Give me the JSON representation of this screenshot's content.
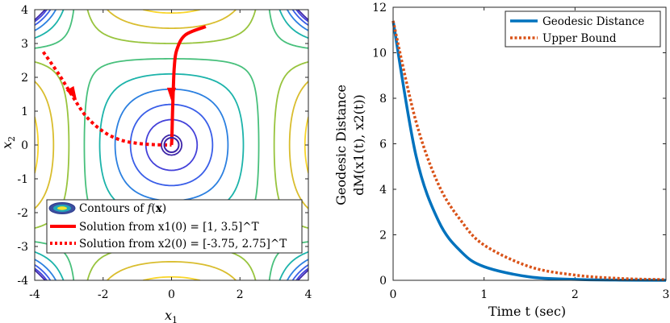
{
  "chart_data": [
    {
      "type": "contour",
      "title": "",
      "xlabel": "x1",
      "ylabel": "x2",
      "xlim": [
        -4,
        4
      ],
      "ylim": [
        -4,
        4
      ],
      "xticks": [
        "-4",
        "-2",
        "0",
        "2",
        "4"
      ],
      "yticks": [
        "4",
        "3",
        "2",
        "1",
        "0",
        "-1",
        "-2",
        "-3",
        "-4"
      ],
      "legend": {
        "position": "bottom",
        "entries": [
          "Contours of f(x)",
          "Solution from x1(0) = [1, 3.5]^T",
          "Solution from x2(0) = [-3.75, 2.75]^T"
        ]
      },
      "contour_levels": [
        0.3,
        0.75,
        1.2,
        1.65,
        2.1,
        2.55,
        3.0,
        3.45,
        3.9
      ],
      "series": [
        {
          "name": "Solution from x1(0)",
          "style": "solid",
          "color": "#ff0000",
          "x": [
            1.0,
            0.4,
            0.15,
            0.08,
            0.05,
            0.03,
            0.02,
            0.01,
            0.0
          ],
          "y": [
            3.5,
            3.25,
            2.8,
            2.3,
            1.6,
            1.0,
            0.6,
            0.2,
            0.0
          ]
        },
        {
          "name": "Solution from x2(0)",
          "style": "dotted",
          "color": "#ff0000",
          "x": [
            -3.75,
            -3.3,
            -2.9,
            -2.5,
            -2.0,
            -1.5,
            -1.0,
            -0.5,
            0.0
          ],
          "y": [
            2.75,
            2.1,
            1.45,
            0.85,
            0.4,
            0.15,
            0.05,
            0.01,
            0.0
          ]
        }
      ]
    },
    {
      "type": "line",
      "title": "",
      "xlabel": "Time t (sec)",
      "ylabel": "Geodesic Distance",
      "ylabel2": "dM(x1(t), x2(t))",
      "xlim": [
        0,
        3
      ],
      "ylim": [
        0,
        12
      ],
      "xticks": [
        "0",
        "1",
        "2",
        "3"
      ],
      "yticks": [
        "12",
        "10",
        "8",
        "6",
        "4",
        "2",
        "0"
      ],
      "legend": {
        "position": "top-right",
        "entries": [
          "Geodesic Distance",
          "Upper Bound"
        ]
      },
      "series": [
        {
          "name": "Geodesic Distance",
          "color": "#0072bd",
          "style": "solid",
          "x": [
            0,
            0.25,
            0.5,
            0.75,
            1.0,
            1.5,
            2.0,
            2.5,
            3.0
          ],
          "y": [
            11.4,
            5.5,
            2.6,
            1.25,
            0.6,
            0.15,
            0.04,
            0.01,
            0.0
          ]
        },
        {
          "name": "Upper Bound",
          "color": "#d95319",
          "style": "dotted",
          "x": [
            0,
            0.25,
            0.5,
            0.75,
            1.0,
            1.5,
            2.0,
            2.5,
            3.0
          ],
          "y": [
            11.4,
            7.0,
            4.2,
            2.6,
            1.55,
            0.6,
            0.23,
            0.08,
            0.03
          ]
        }
      ]
    }
  ]
}
